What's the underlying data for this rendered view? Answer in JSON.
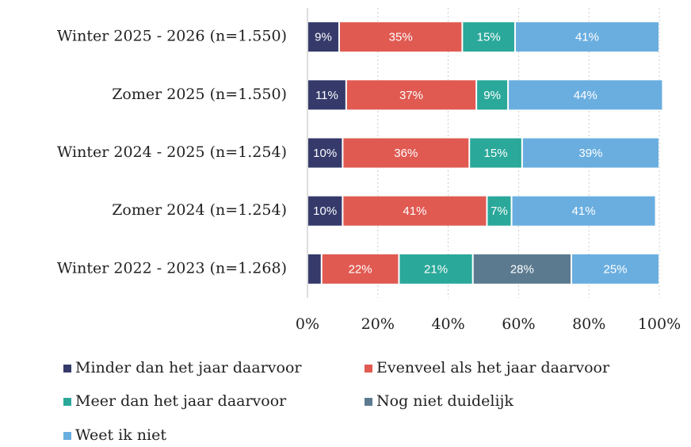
{
  "chart_data": {
    "type": "stacked-barh",
    "categories": [
      "Winter 2025 - 2026 (n=1.550)",
      "Zomer 2025 (n=1.550)",
      "Winter 2024 - 2025 (n=1.254)",
      "Zomer 2024 (n=1.254)",
      "Winter 2022 - 2023 (n=1.268)"
    ],
    "series": [
      {
        "name": "Minder dan het jaar daarvoor",
        "color": "#353a6b",
        "values": [
          9,
          11,
          10,
          10,
          4
        ],
        "value_labels": [
          "9%",
          "11%",
          "10%",
          "10%",
          null
        ]
      },
      {
        "name": "Evenveel als het jaar daarvoor",
        "color": "#e05a52",
        "values": [
          35,
          37,
          36,
          41,
          22
        ],
        "value_labels": [
          "35%",
          "37%",
          "36%",
          "41%",
          "22%"
        ]
      },
      {
        "name": "Meer dan het jaar daarvoor",
        "color": "#2aa89a",
        "values": [
          15,
          9,
          15,
          7,
          21
        ],
        "value_labels": [
          "15%",
          "9%",
          "15%",
          "7%",
          "21%"
        ]
      },
      {
        "name": "Nog niet duidelijk",
        "color": "#5b7a8f",
        "values": [
          null,
          null,
          null,
          null,
          28
        ],
        "value_labels": [
          null,
          null,
          null,
          null,
          "28%"
        ]
      },
      {
        "name": "Weet ik niet",
        "color": "#6aaee0",
        "values": [
          41,
          44,
          39,
          41,
          25
        ],
        "value_labels": [
          "41%",
          "44%",
          "39%",
          "41%",
          "25%"
        ]
      }
    ],
    "xlim": [
      0,
      100
    ],
    "xticks": [
      {
        "value": 0,
        "label": "0%"
      },
      {
        "value": 20,
        "label": "20%"
      },
      {
        "value": 40,
        "label": "40%"
      },
      {
        "value": 60,
        "label": "60%"
      },
      {
        "value": 80,
        "label": "80%"
      },
      {
        "value": 100,
        "label": "100%"
      }
    ],
    "grid": true,
    "legend": "bottom"
  }
}
